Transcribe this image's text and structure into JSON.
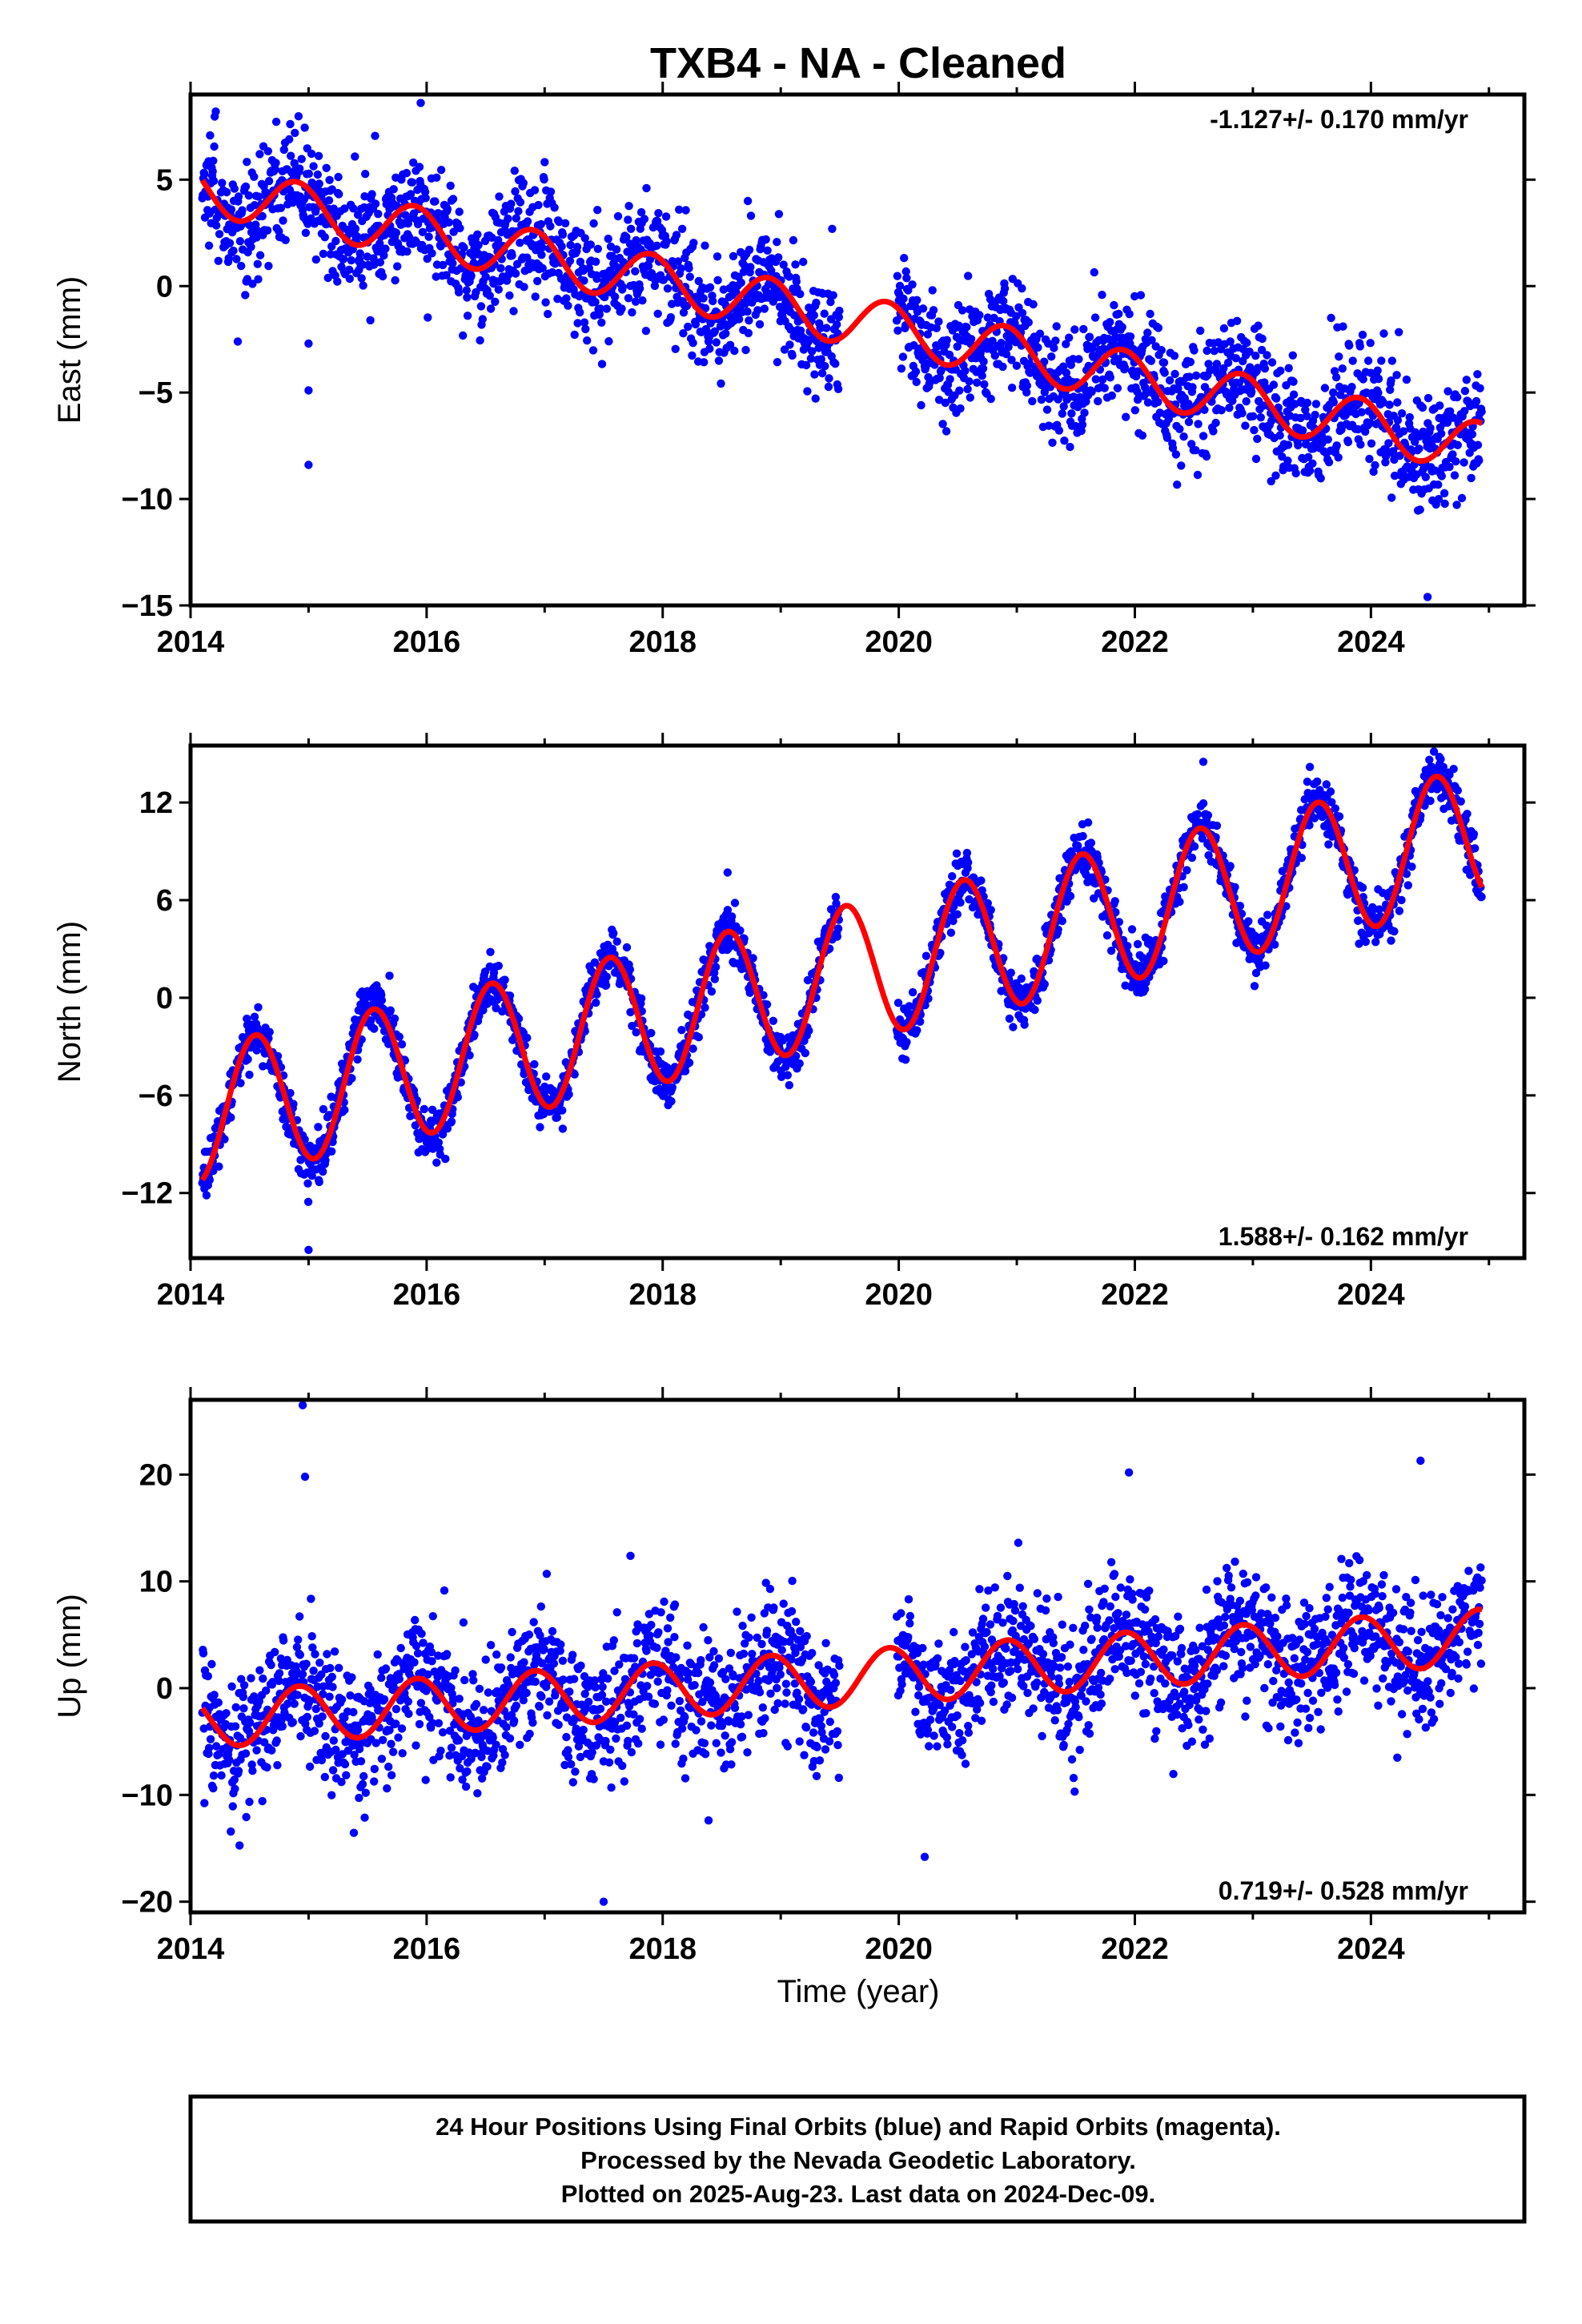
{
  "colors": {
    "observations": "#0000ff",
    "model": "#ff0000",
    "frame": "#000000"
  },
  "chart_data": {
    "type": "scatter",
    "title": "TXB4  - NA - Cleaned",
    "xlabel": "Time (year)",
    "xlim": [
      2014.0,
      2025.3
    ],
    "x_ticks": [
      "2014",
      "2016",
      "2018",
      "2020",
      "2022",
      "2024"
    ],
    "grid": false,
    "panels": [
      {
        "ylabel": "East (mm)",
        "ylim": [
          -15,
          9
        ],
        "y_ticks": [
          "5",
          "0",
          "−5",
          "−10",
          "−15"
        ],
        "rate_label": "-1.127+/- 0.170 mm/yr",
        "rate_label_position": "top-right",
        "trend": {
          "t0": 2014.1,
          "intercept": 4.6,
          "slope": -1.127
        },
        "seasonal": {
          "amplitude": 1.2,
          "peak_phase": 0.9
        },
        "scatter_sd": 1.4,
        "outliers": [
          [
            2015.95,
            8.6
          ],
          [
            2015.0,
            -8.4
          ],
          [
            2015.0,
            -4.9
          ],
          [
            2015.0,
            -2.7
          ],
          [
            2024.48,
            -14.6
          ],
          [
            2014.4,
            -2.6
          ]
        ]
      },
      {
        "ylabel": "North (mm)",
        "ylim": [
          -16,
          15.5
        ],
        "y_ticks": [
          "12",
          "6",
          "0",
          "−6",
          "−12"
        ],
        "rate_label": "1.588+/- 0.162 mm/yr",
        "rate_label_position": "bottom-right",
        "trend": {
          "t0": 2014.1,
          "intercept": -7.2,
          "slope": 1.588
        },
        "seasonal": {
          "amplitude": 4.2,
          "peak_phase": 0.55
        },
        "scatter_sd": 0.8,
        "outliers": [
          [
            2015.0,
            -15.5
          ],
          [
            2018.55,
            7.7
          ],
          [
            2022.58,
            14.5
          ],
          [
            2024.58,
            14.8
          ]
        ]
      },
      {
        "ylabel": "Up (mm)",
        "ylim": [
          -21,
          27
        ],
        "y_ticks": [
          "20",
          "10",
          "0",
          "−10",
          "−20"
        ],
        "rate_label": "0.719+/- 0.528 mm/yr",
        "rate_label_position": "bottom-right",
        "trend": {
          "t0": 2014.1,
          "intercept": -3.0,
          "slope": 0.719
        },
        "seasonal": {
          "amplitude": 2.6,
          "peak_phase": 0.92
        },
        "scatter_sd": 3.2,
        "outliers": [
          [
            2014.95,
            26.5
          ],
          [
            2014.97,
            19.8
          ],
          [
            2017.5,
            -20.0
          ],
          [
            2021.95,
            20.2
          ],
          [
            2024.42,
            21.3
          ],
          [
            2020.22,
            -15.8
          ]
        ]
      }
    ],
    "data_gap": [
      2019.5,
      2019.98
    ],
    "data_range": [
      2014.1,
      2024.94
    ]
  },
  "footer": {
    "line1": "24 Hour Positions Using Final Orbits (blue) and Rapid Orbits (magenta).",
    "line2": "Processed by the Nevada Geodetic Laboratory.",
    "line3": "Plotted on 2025-Aug-23. Last data on 2024-Dec-09."
  }
}
